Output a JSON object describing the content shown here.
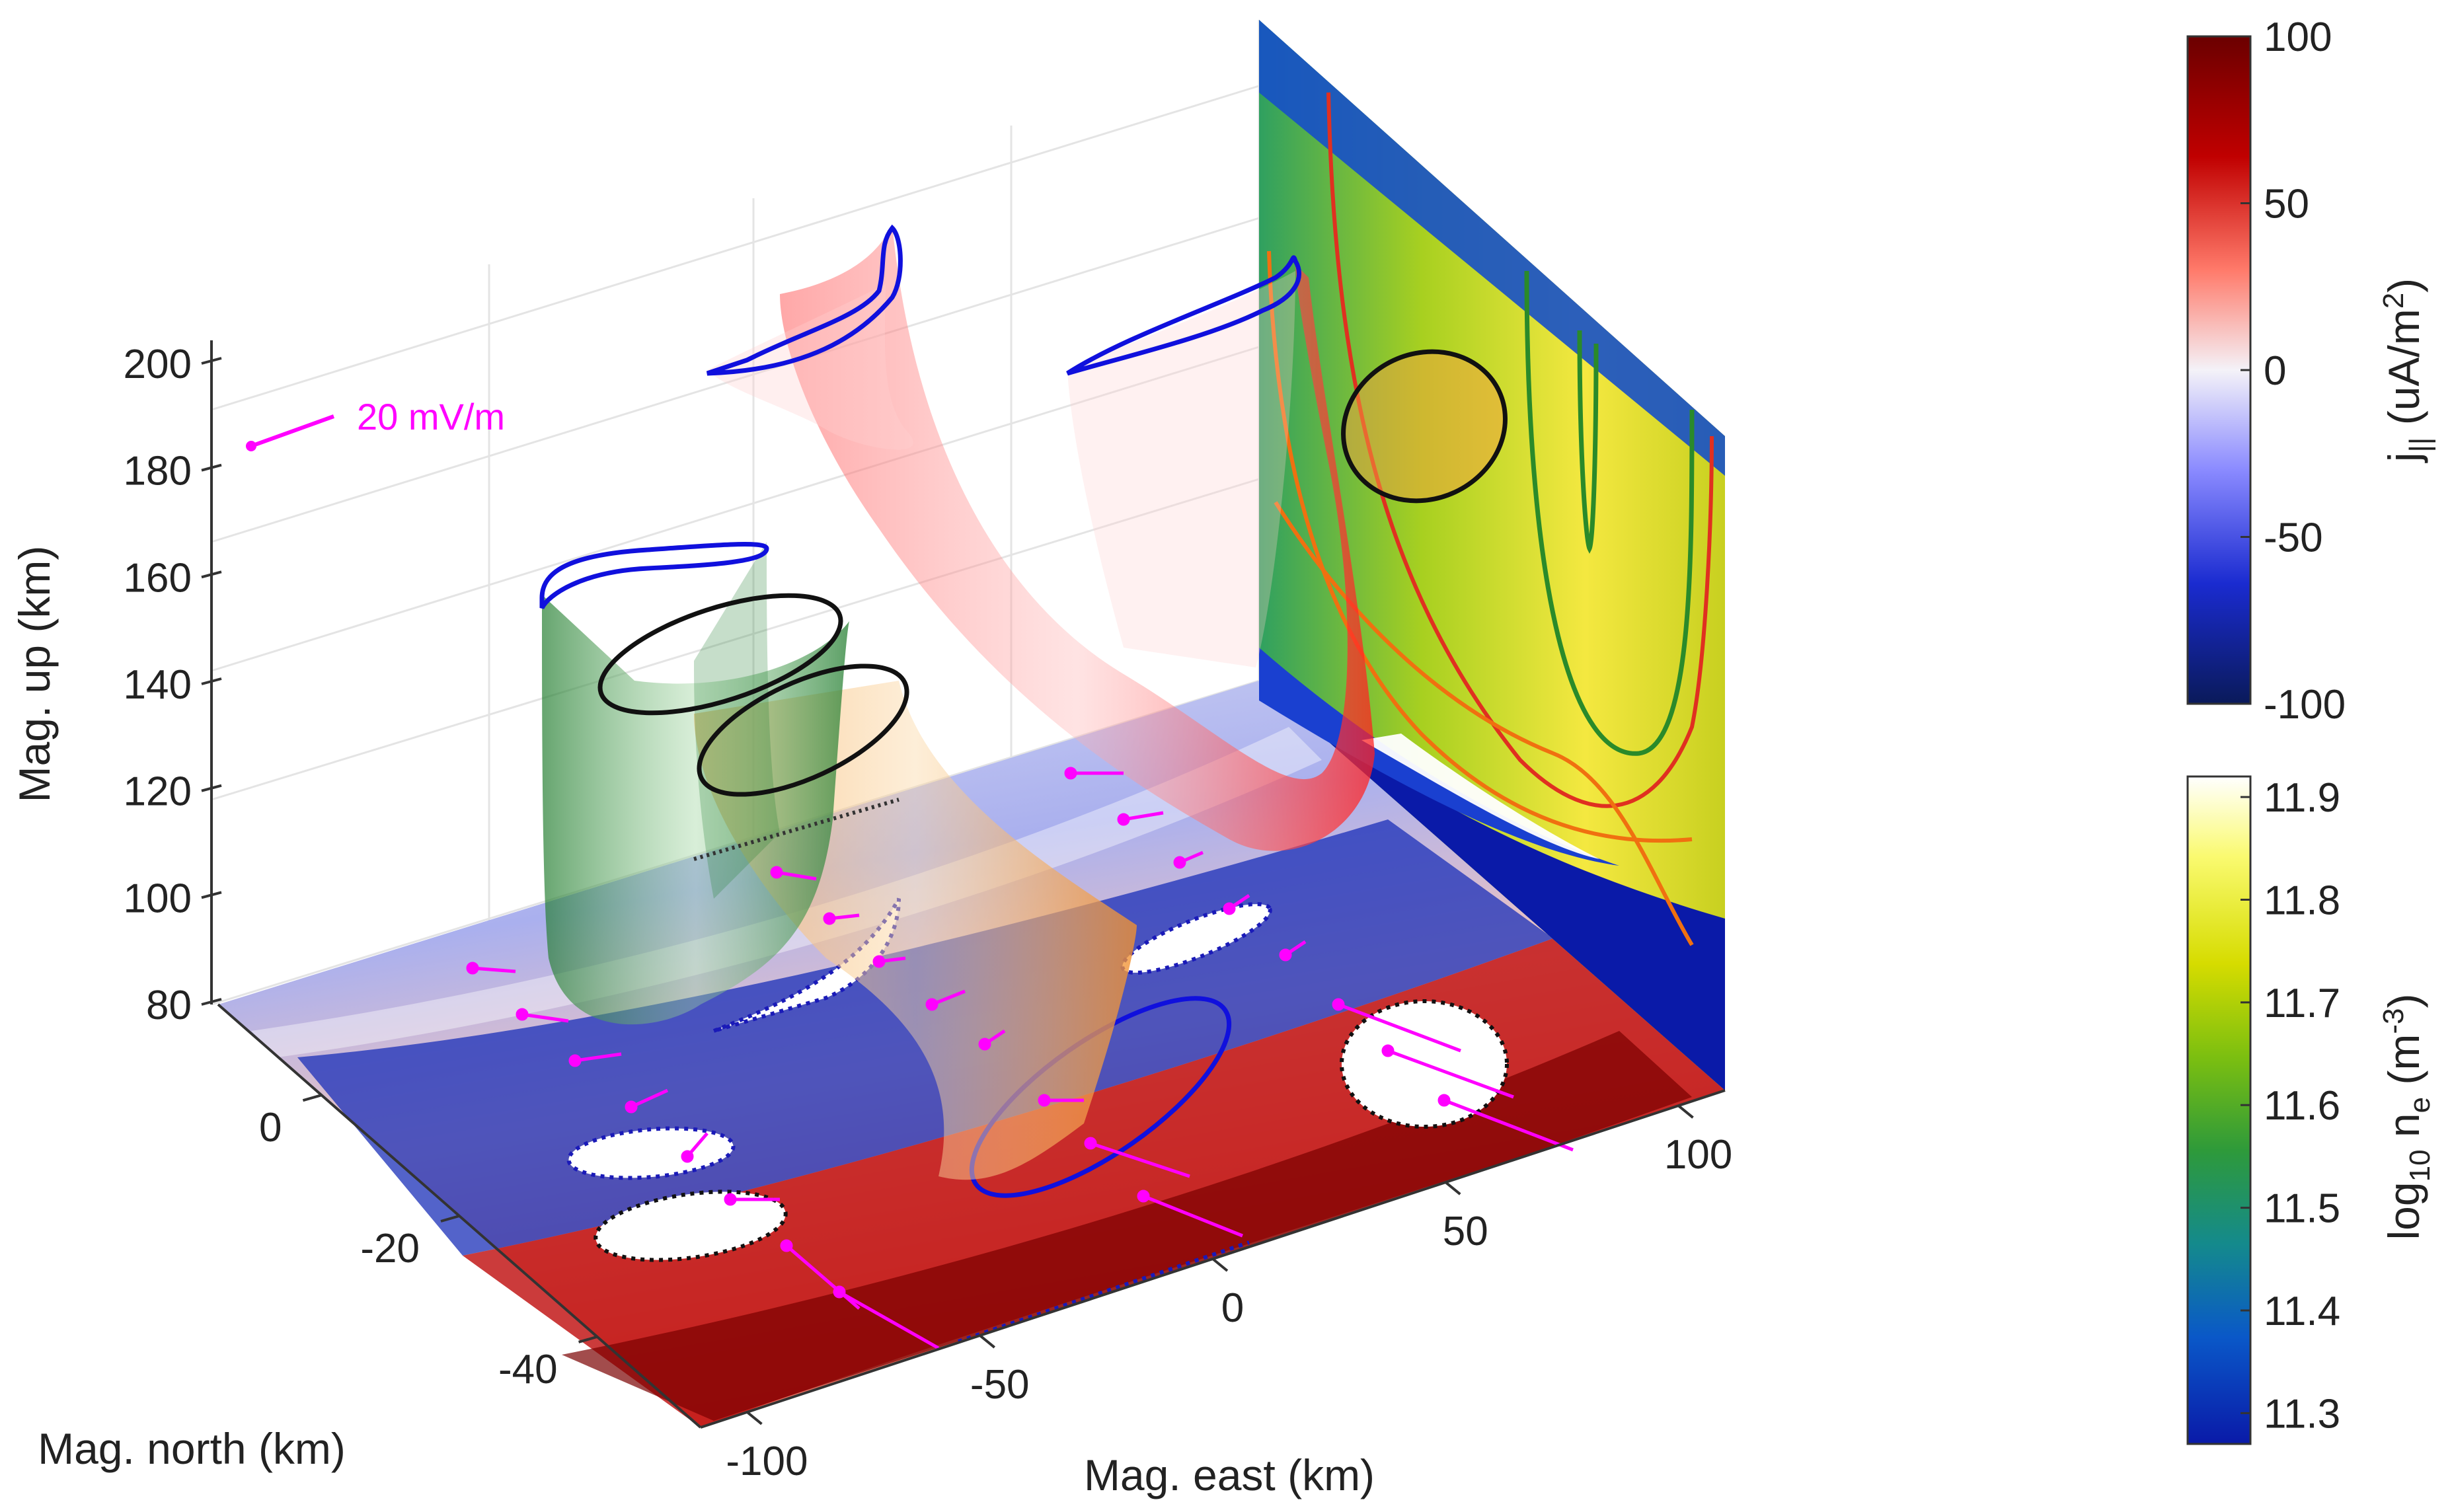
{
  "chart_data": {
    "type": "3d-surface",
    "axes": {
      "x": {
        "label": "Mag. east (km)",
        "ticks": [
          "-100",
          "-50",
          "0",
          "50",
          "100"
        ],
        "tick_values": [
          -100,
          -50,
          0,
          50,
          100
        ],
        "range": [
          -110,
          110
        ]
      },
      "y": {
        "label": "Mag. north (km)",
        "ticks": [
          "0",
          "-20",
          "-40"
        ],
        "tick_values": [
          0,
          -20,
          -40
        ],
        "range": [
          -55,
          15
        ]
      },
      "z": {
        "label": "Mag. up (km)",
        "ticks": [
          "80",
          "100",
          "120",
          "140",
          "160",
          "180",
          "200"
        ],
        "tick_values": [
          80,
          100,
          120,
          140,
          160,
          180,
          200
        ],
        "range": [
          80,
          200
        ]
      }
    },
    "grid": true,
    "legend": {
      "label": "20 mV/m",
      "color": "#ff00ff"
    },
    "colorbars": [
      {
        "label_main": "j",
        "label_sub": "||",
        "label_unit_prefix": " (uA/m",
        "label_unit_sup": "2",
        "label_unit_suffix": ")",
        "ticks": [
          "100",
          "50",
          "0",
          "-50",
          "-100"
        ],
        "tick_values": [
          100,
          50,
          0,
          -50,
          -100
        ],
        "range": [
          -100,
          100
        ],
        "colormap": "blue-white-red"
      },
      {
        "label_main": "log",
        "label_sub": "10",
        "label_mid": " n",
        "label_sub2": "e",
        "label_unit_prefix": " (m",
        "label_unit_sup": "-3",
        "label_unit_suffix": ")",
        "ticks": [
          "11.9",
          "11.8",
          "11.7",
          "11.6",
          "11.5",
          "11.4",
          "11.3"
        ],
        "tick_values": [
          11.9,
          11.8,
          11.7,
          11.6,
          11.5,
          11.4,
          11.3
        ],
        "range": [
          11.27,
          11.92
        ],
        "colormap": "parula-like"
      }
    ],
    "series": [
      {
        "name": "",
        "kind": "flux-tube",
        "color": "#2e8b2e"
      },
      {
        "name": "",
        "kind": "flux-tube",
        "color": "#f4a040"
      },
      {
        "name": "",
        "kind": "flux-tube",
        "color": "#ff2a2a"
      }
    ],
    "colors": {
      "magenta": "#ff00ff",
      "blue_contour": "#1010dd",
      "black_contour": "#111111",
      "green_tube": "#2e8b2e",
      "orange_tube": "#f4a040",
      "red_tube": "#ff2a2a"
    }
  }
}
